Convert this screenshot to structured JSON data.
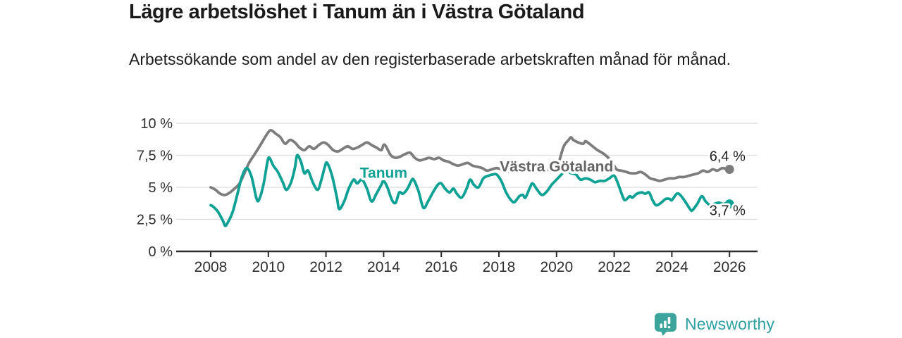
{
  "header": {
    "title": "Lägre arbetslöshet i Tanum än i Västra Götaland",
    "subtitle": "Arbetssökande som andel av den registerbaserade arbetskraften månad för månad."
  },
  "footer": {
    "brand": "Newsworthy",
    "logo_icon": "bar-chart-speech-bubble-icon",
    "brand_color": "#2e9f9f",
    "logo_fill": "#3da49c"
  },
  "colors": {
    "grid": "#dcdcdc",
    "axis": "#2d2d2d",
    "tick_label": "#303030",
    "annotation": "#222222",
    "background": "#ffffff"
  },
  "chart_data": {
    "type": "line",
    "title": "Lägre arbetslöshet i Tanum än i Västra Götaland",
    "subtitle": "Arbetssökande som andel av den registerbaserade arbetskraften månad för månad.",
    "unit": "%",
    "grid": true,
    "legend_position": "inline-labels",
    "x_axis": {
      "min": 2008,
      "max": 2026.4,
      "ticks": [
        {
          "value": 2008,
          "label": "2008"
        },
        {
          "value": 2010,
          "label": "2010"
        },
        {
          "value": 2012,
          "label": "2012"
        },
        {
          "value": 2014,
          "label": "2014"
        },
        {
          "value": 2016,
          "label": "2016"
        },
        {
          "value": 2018,
          "label": "2018"
        },
        {
          "value": 2020,
          "label": "2020"
        },
        {
          "value": 2022,
          "label": "2022"
        },
        {
          "value": 2024,
          "label": "2024"
        },
        {
          "value": 2026,
          "label": "2026"
        }
      ]
    },
    "y_axis": {
      "min": 0,
      "max": 10,
      "ticks": [
        {
          "value": 10,
          "label": "10 %"
        },
        {
          "value": 7.5,
          "label": "7,5 %"
        },
        {
          "value": 5,
          "label": "5 %"
        },
        {
          "value": 2.5,
          "label": "2,5 %"
        },
        {
          "value": 0,
          "label": "0 %"
        }
      ]
    },
    "series": [
      {
        "name": "Västra Götaland",
        "color": "#7d7d7d",
        "label_color": "#656565",
        "end_value": 6.4,
        "end_label": "6,4 %",
        "label_at": {
          "x": 2020.0,
          "y": 6.25
        },
        "points": [
          [
            2008.0,
            5.0
          ],
          [
            2008.17,
            4.8
          ],
          [
            2008.33,
            4.5
          ],
          [
            2008.5,
            4.4
          ],
          [
            2008.67,
            4.6
          ],
          [
            2008.83,
            4.9
          ],
          [
            2009.0,
            5.3
          ],
          [
            2009.17,
            6.1
          ],
          [
            2009.33,
            6.9
          ],
          [
            2009.5,
            7.5
          ],
          [
            2009.67,
            8.1
          ],
          [
            2009.83,
            8.7
          ],
          [
            2010.0,
            9.3
          ],
          [
            2010.1,
            9.45
          ],
          [
            2010.25,
            9.2
          ],
          [
            2010.42,
            8.9
          ],
          [
            2010.58,
            8.4
          ],
          [
            2010.75,
            8.7
          ],
          [
            2010.92,
            8.5
          ],
          [
            2011.08,
            8.1
          ],
          [
            2011.25,
            7.9
          ],
          [
            2011.42,
            8.2
          ],
          [
            2011.58,
            8.0
          ],
          [
            2011.75,
            8.3
          ],
          [
            2011.92,
            8.5
          ],
          [
            2012.08,
            8.3
          ],
          [
            2012.25,
            7.9
          ],
          [
            2012.42,
            7.8
          ],
          [
            2012.58,
            8.0
          ],
          [
            2012.75,
            8.2
          ],
          [
            2012.92,
            8.0
          ],
          [
            2013.08,
            8.1
          ],
          [
            2013.25,
            8.3
          ],
          [
            2013.42,
            8.5
          ],
          [
            2013.58,
            8.3
          ],
          [
            2013.75,
            8.1
          ],
          [
            2013.92,
            7.9
          ],
          [
            2014.0,
            8.3
          ],
          [
            2014.08,
            8.2
          ],
          [
            2014.25,
            7.5
          ],
          [
            2014.42,
            7.3
          ],
          [
            2014.58,
            7.4
          ],
          [
            2014.75,
            7.6
          ],
          [
            2014.92,
            7.7
          ],
          [
            2015.08,
            7.3
          ],
          [
            2015.25,
            7.1
          ],
          [
            2015.42,
            7.2
          ],
          [
            2015.58,
            7.3
          ],
          [
            2015.75,
            7.2
          ],
          [
            2015.92,
            7.3
          ],
          [
            2016.08,
            7.1
          ],
          [
            2016.25,
            7.0
          ],
          [
            2016.42,
            6.8
          ],
          [
            2016.58,
            6.7
          ],
          [
            2016.75,
            6.8
          ],
          [
            2016.92,
            6.9
          ],
          [
            2017.08,
            6.7
          ],
          [
            2017.25,
            6.6
          ],
          [
            2017.42,
            6.5
          ],
          [
            2017.58,
            6.3
          ],
          [
            2017.75,
            6.4
          ],
          [
            2017.92,
            6.5
          ],
          [
            2018.08,
            6.4
          ],
          [
            2018.25,
            6.3
          ],
          [
            2018.42,
            6.2
          ],
          [
            2018.58,
            6.2
          ],
          [
            2018.75,
            6.3
          ],
          [
            2018.92,
            6.3
          ],
          [
            2019.08,
            6.2
          ],
          [
            2019.25,
            6.2
          ],
          [
            2019.42,
            6.3
          ],
          [
            2019.58,
            6.3
          ],
          [
            2019.75,
            6.4
          ],
          [
            2019.92,
            6.5
          ],
          [
            2020.08,
            7.0
          ],
          [
            2020.25,
            8.2
          ],
          [
            2020.42,
            8.7
          ],
          [
            2020.5,
            8.9
          ],
          [
            2020.58,
            8.7
          ],
          [
            2020.75,
            8.5
          ],
          [
            2020.92,
            8.4
          ],
          [
            2021.0,
            8.6
          ],
          [
            2021.08,
            8.5
          ],
          [
            2021.25,
            8.2
          ],
          [
            2021.42,
            7.9
          ],
          [
            2021.58,
            7.7
          ],
          [
            2021.75,
            7.4
          ],
          [
            2021.92,
            7.0
          ],
          [
            2022.08,
            6.4
          ],
          [
            2022.25,
            6.3
          ],
          [
            2022.42,
            6.2
          ],
          [
            2022.58,
            6.1
          ],
          [
            2022.75,
            6.1
          ],
          [
            2022.92,
            6.2
          ],
          [
            2023.08,
            6.0
          ],
          [
            2023.25,
            5.7
          ],
          [
            2023.42,
            5.6
          ],
          [
            2023.58,
            5.5
          ],
          [
            2023.75,
            5.6
          ],
          [
            2023.92,
            5.7
          ],
          [
            2024.08,
            5.7
          ],
          [
            2024.25,
            5.8
          ],
          [
            2024.42,
            5.8
          ],
          [
            2024.58,
            5.9
          ],
          [
            2024.75,
            6.0
          ],
          [
            2024.92,
            6.1
          ],
          [
            2025.08,
            6.3
          ],
          [
            2025.25,
            6.2
          ],
          [
            2025.42,
            6.4
          ],
          [
            2025.58,
            6.3
          ],
          [
            2025.75,
            6.5
          ],
          [
            2025.92,
            6.4
          ],
          [
            2026.0,
            6.4
          ]
        ]
      },
      {
        "name": "Tanum",
        "color": "#0fa294",
        "label_color": "#0fa294",
        "end_value": 3.7,
        "end_label": "3,7 %",
        "label_at": {
          "x": 2014.0,
          "y": 5.75
        },
        "points": [
          [
            2008.0,
            3.6
          ],
          [
            2008.08,
            3.5
          ],
          [
            2008.25,
            3.1
          ],
          [
            2008.42,
            2.4
          ],
          [
            2008.5,
            2.0
          ],
          [
            2008.58,
            2.2
          ],
          [
            2008.75,
            3.0
          ],
          [
            2008.92,
            4.4
          ],
          [
            2009.08,
            5.8
          ],
          [
            2009.25,
            6.5
          ],
          [
            2009.42,
            5.8
          ],
          [
            2009.58,
            4.2
          ],
          [
            2009.67,
            4.0
          ],
          [
            2009.83,
            5.2
          ],
          [
            2009.97,
            7.0
          ],
          [
            2010.04,
            7.3
          ],
          [
            2010.17,
            6.7
          ],
          [
            2010.33,
            6.2
          ],
          [
            2010.5,
            5.4
          ],
          [
            2010.63,
            4.8
          ],
          [
            2010.79,
            5.4
          ],
          [
            2010.92,
            6.5
          ],
          [
            2011.0,
            7.5
          ],
          [
            2011.13,
            7.0
          ],
          [
            2011.25,
            6.1
          ],
          [
            2011.38,
            6.3
          ],
          [
            2011.54,
            5.4
          ],
          [
            2011.71,
            4.8
          ],
          [
            2011.83,
            5.5
          ],
          [
            2011.96,
            6.6
          ],
          [
            2012.04,
            6.9
          ],
          [
            2012.21,
            5.9
          ],
          [
            2012.38,
            4.2
          ],
          [
            2012.46,
            3.3
          ],
          [
            2012.63,
            3.9
          ],
          [
            2012.79,
            4.9
          ],
          [
            2012.96,
            5.6
          ],
          [
            2013.08,
            5.3
          ],
          [
            2013.25,
            5.6
          ],
          [
            2013.42,
            4.9
          ],
          [
            2013.58,
            3.9
          ],
          [
            2013.75,
            4.5
          ],
          [
            2013.92,
            5.2
          ],
          [
            2014.0,
            5.5
          ],
          [
            2014.13,
            5.0
          ],
          [
            2014.29,
            4.0
          ],
          [
            2014.42,
            3.8
          ],
          [
            2014.54,
            4.6
          ],
          [
            2014.67,
            4.5
          ],
          [
            2014.83,
            4.9
          ],
          [
            2014.96,
            5.5
          ],
          [
            2015.04,
            5.6
          ],
          [
            2015.21,
            4.7
          ],
          [
            2015.38,
            3.4
          ],
          [
            2015.54,
            3.9
          ],
          [
            2015.71,
            4.6
          ],
          [
            2015.88,
            5.2
          ],
          [
            2016.0,
            5.3
          ],
          [
            2016.13,
            4.9
          ],
          [
            2016.29,
            4.6
          ],
          [
            2016.42,
            4.9
          ],
          [
            2016.54,
            4.5
          ],
          [
            2016.71,
            4.2
          ],
          [
            2016.88,
            4.9
          ],
          [
            2017.0,
            5.6
          ],
          [
            2017.13,
            5.2
          ],
          [
            2017.29,
            5.0
          ],
          [
            2017.46,
            5.7
          ],
          [
            2017.63,
            5.9
          ],
          [
            2017.79,
            6.0
          ],
          [
            2017.92,
            6.0
          ],
          [
            2018.08,
            5.5
          ],
          [
            2018.25,
            4.6
          ],
          [
            2018.42,
            4.0
          ],
          [
            2018.54,
            3.85
          ],
          [
            2018.71,
            4.3
          ],
          [
            2018.83,
            4.4
          ],
          [
            2018.92,
            4.2
          ],
          [
            2019.08,
            5.0
          ],
          [
            2019.17,
            5.3
          ],
          [
            2019.33,
            4.8
          ],
          [
            2019.5,
            4.4
          ],
          [
            2019.67,
            4.7
          ],
          [
            2019.83,
            5.2
          ],
          [
            2020.0,
            5.6
          ],
          [
            2020.17,
            6.0
          ],
          [
            2020.33,
            6.3
          ],
          [
            2020.5,
            6.1
          ],
          [
            2020.67,
            6.0
          ],
          [
            2020.83,
            5.6
          ],
          [
            2021.0,
            5.7
          ],
          [
            2021.17,
            5.6
          ],
          [
            2021.33,
            5.4
          ],
          [
            2021.5,
            5.5
          ],
          [
            2021.67,
            5.5
          ],
          [
            2021.83,
            5.7
          ],
          [
            2022.0,
            5.9
          ],
          [
            2022.13,
            5.3
          ],
          [
            2022.29,
            4.3
          ],
          [
            2022.38,
            4.0
          ],
          [
            2022.54,
            4.3
          ],
          [
            2022.63,
            4.2
          ],
          [
            2022.79,
            4.5
          ],
          [
            2022.96,
            4.6
          ],
          [
            2023.08,
            4.5
          ],
          [
            2023.21,
            4.6
          ],
          [
            2023.33,
            4.0
          ],
          [
            2023.46,
            3.6
          ],
          [
            2023.63,
            3.8
          ],
          [
            2023.79,
            4.1
          ],
          [
            2023.92,
            4.1
          ],
          [
            2024.0,
            4.0
          ],
          [
            2024.17,
            4.5
          ],
          [
            2024.29,
            4.4
          ],
          [
            2024.46,
            3.9
          ],
          [
            2024.63,
            3.3
          ],
          [
            2024.71,
            3.2
          ],
          [
            2024.88,
            3.7
          ],
          [
            2025.04,
            4.3
          ],
          [
            2025.17,
            3.9
          ],
          [
            2025.33,
            3.6
          ],
          [
            2025.46,
            3.7
          ],
          [
            2025.63,
            3.8
          ],
          [
            2025.79,
            3.7
          ],
          [
            2025.92,
            3.8
          ],
          [
            2026.0,
            3.7
          ]
        ]
      }
    ],
    "annotations": [
      {
        "text": "6,4 %",
        "x": 2025.93,
        "y": 7.05,
        "color": "#222222"
      },
      {
        "text": "3,7 %",
        "x": 2025.93,
        "y": 2.82,
        "color": "#222222"
      }
    ]
  }
}
